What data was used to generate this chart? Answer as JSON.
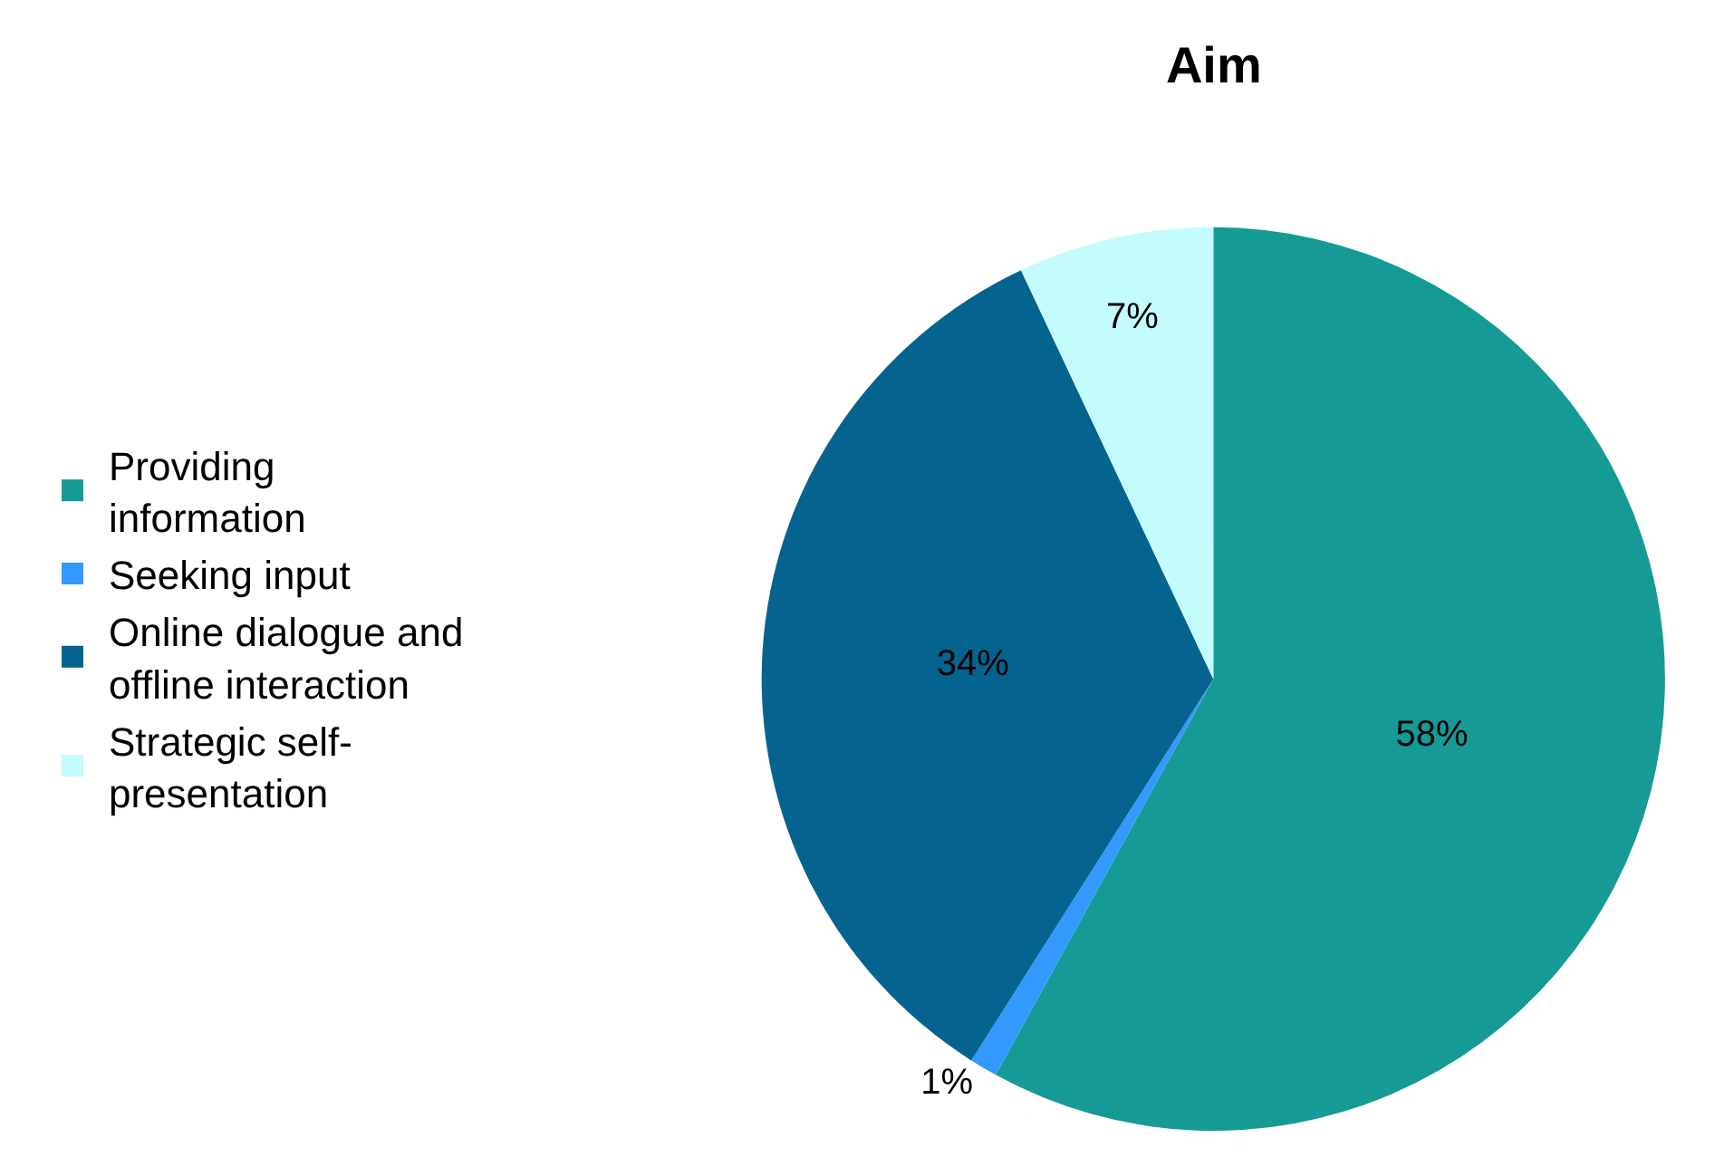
{
  "chart_data": {
    "type": "pie",
    "title": "Aim",
    "categories": [
      "Providing information",
      "Seeking input",
      "Online dialogue and offline interaction",
      "Strategic self-presentation"
    ],
    "values": [
      58,
      1,
      34,
      7
    ],
    "colors": [
      "#169a96",
      "#3399ff",
      "#05648f",
      "#c4fbfc"
    ],
    "value_labels": [
      "58%",
      "1%",
      "34%",
      "7%"
    ],
    "legend": "left"
  }
}
